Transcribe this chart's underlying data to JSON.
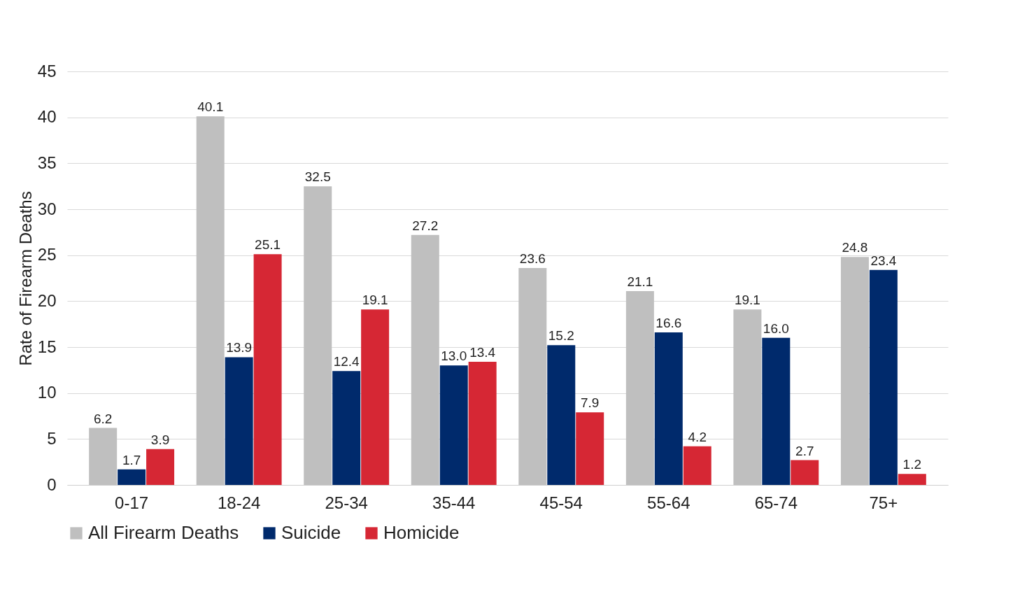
{
  "chart_data": {
    "type": "bar",
    "ylabel": "Rate of Firearm Deaths",
    "categories": [
      "0-17",
      "18-24",
      "25-34",
      "35-44",
      "45-54",
      "55-64",
      "65-74",
      "75+"
    ],
    "series": [
      {
        "name": "All Firearm Deaths",
        "color": "#bfbfbf",
        "values": [
          6.2,
          40.1,
          32.5,
          27.2,
          23.6,
          21.1,
          19.1,
          24.8
        ],
        "value_labels": [
          "6.2",
          "40.1",
          "32.5",
          "27.2",
          "23.6",
          "21.1",
          "19.1",
          "24.8"
        ]
      },
      {
        "name": "Suicide",
        "color": "#002a6c",
        "values": [
          1.7,
          13.9,
          12.4,
          13.0,
          15.2,
          16.6,
          16.0,
          23.4
        ],
        "value_labels": [
          "1.7",
          "13.9",
          "12.4",
          "13.0",
          "15.2",
          "16.6",
          "16.0",
          "23.4"
        ]
      },
      {
        "name": "Homicide",
        "color": "#d62734",
        "values": [
          3.9,
          25.1,
          19.1,
          13.4,
          7.9,
          4.2,
          2.7,
          1.2
        ],
        "value_labels": [
          "3.9",
          "25.1",
          "19.1",
          "13.4",
          "7.9",
          "4.2",
          "2.7",
          "1.2"
        ]
      }
    ],
    "ylim": [
      0,
      45
    ],
    "yticks": [
      0,
      5,
      10,
      15,
      20,
      25,
      30,
      35,
      40,
      45
    ],
    "grid": "y",
    "legend": "bottom"
  }
}
